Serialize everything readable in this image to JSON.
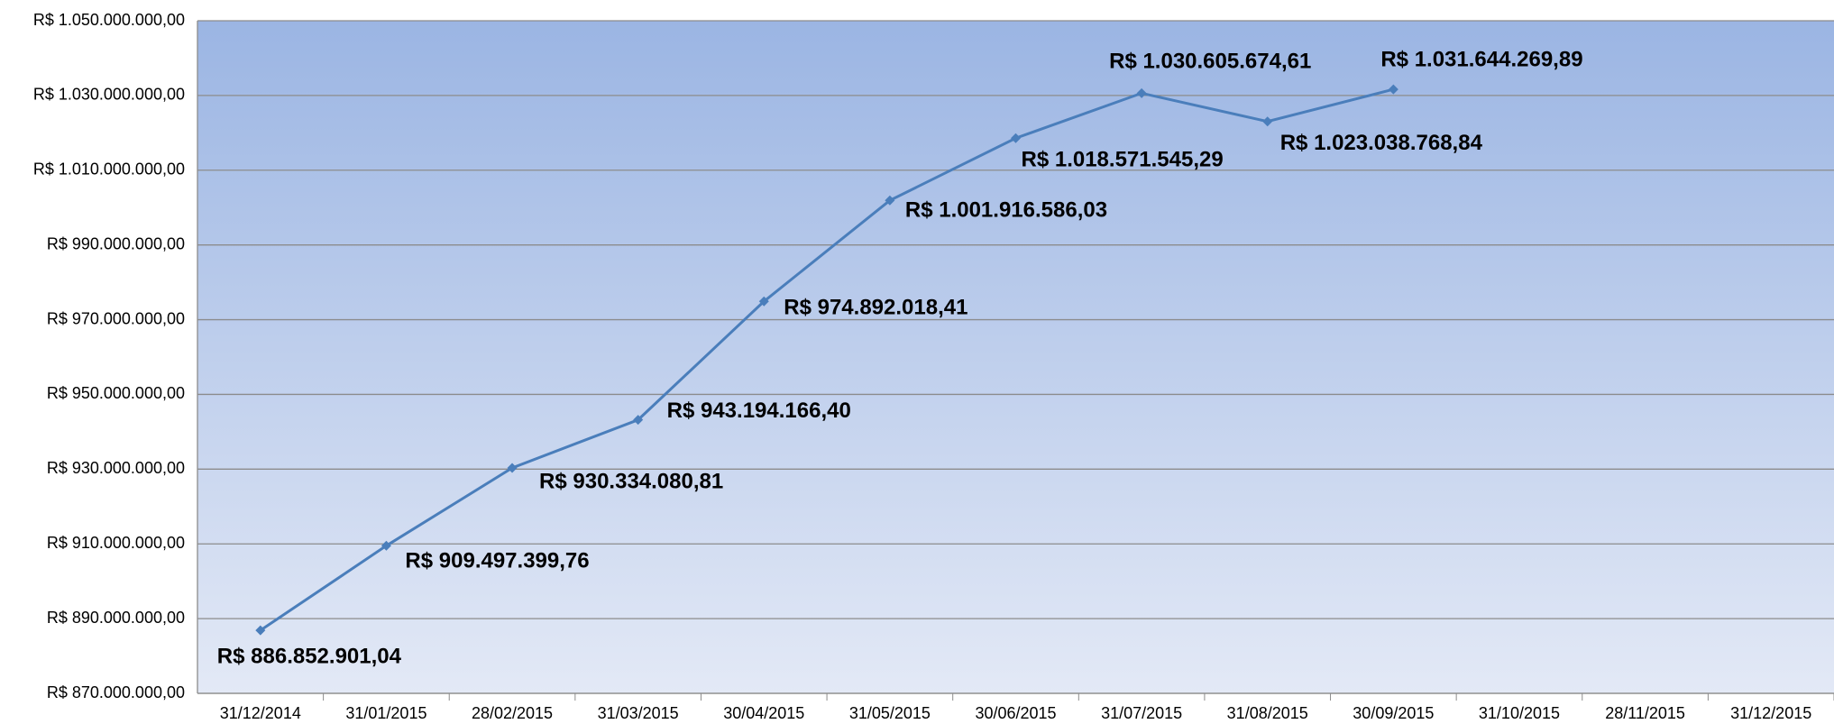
{
  "chart_data": {
    "type": "line",
    "categories": [
      "31/12/2014",
      "31/01/2015",
      "28/02/2015",
      "31/03/2015",
      "30/04/2015",
      "31/05/2015",
      "30/06/2015",
      "31/07/2015",
      "31/08/2015",
      "30/09/2015",
      "31/10/2015",
      "28/11/2015",
      "31/12/2015"
    ],
    "series": [
      {
        "color": "#4a7ebb",
        "values": [
          886852901.04,
          909497399.76,
          930334080.81,
          943194166.4,
          974892018.41,
          1001916586.03,
          1018571545.29,
          1030605674.61,
          1023038768.84,
          1031644269.89,
          null,
          null,
          null
        ],
        "value_labels": [
          "R$ 886.852.901,04",
          "R$ 909.497.399,76",
          "R$ 930.334.080,81",
          "R$ 943.194.166,40",
          "R$ 974.892.018,41",
          "R$ 1.001.916.586,03",
          "R$ 1.018.571.545,29",
          "R$ 1.030.605.674,61",
          "R$ 1.023.038.768,84",
          "R$ 1.031.644.269,89",
          null,
          null,
          null
        ]
      }
    ],
    "ylim": [
      870000000,
      1050000000
    ],
    "yticks": [
      {
        "value": 870000000,
        "label": "R$ 870.000.000,00"
      },
      {
        "value": 890000000,
        "label": "R$ 890.000.000,00"
      },
      {
        "value": 910000000,
        "label": "R$ 910.000.000,00"
      },
      {
        "value": 930000000,
        "label": "R$ 930.000.000,00"
      },
      {
        "value": 950000000,
        "label": "R$ 950.000.000,00"
      },
      {
        "value": 970000000,
        "label": "R$ 970.000.000,00"
      },
      {
        "value": 990000000,
        "label": "R$ 990.000.000,00"
      },
      {
        "value": 1010000000,
        "label": "R$ 1.010.000.000,00"
      },
      {
        "value": 1030000000,
        "label": "R$ 1.030.000.000,00"
      },
      {
        "value": 1050000000,
        "label": "R$ 1.050.000.000,00"
      }
    ],
    "grid": true
  }
}
